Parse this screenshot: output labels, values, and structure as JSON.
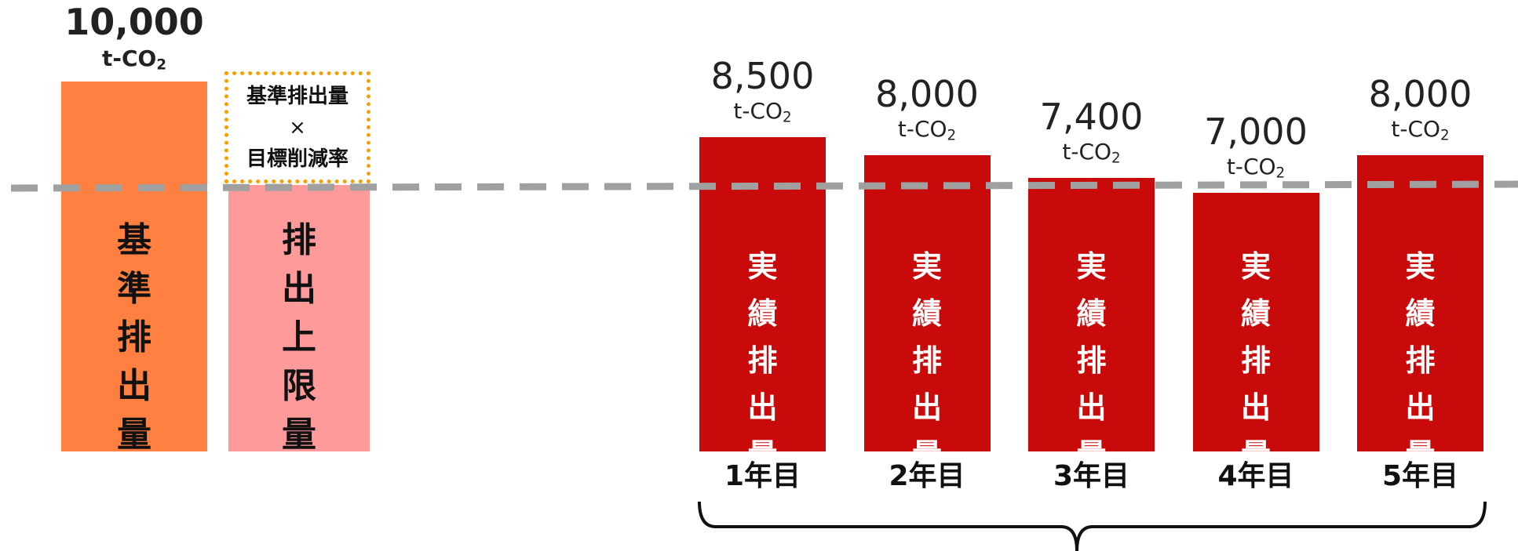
{
  "chart_data": {
    "type": "bar",
    "unit": "t-CO2",
    "unit_prefix": "t-CO",
    "unit_sub": "2",
    "baseline": {
      "value": "10,000",
      "numeric_value": 10000,
      "label": [
        "基",
        "準",
        "排",
        "出",
        "量"
      ],
      "color": "#FF8040"
    },
    "cap": {
      "label": [
        "排",
        "出",
        "上",
        "限",
        "量"
      ],
      "formula": [
        "基準排出量",
        "×",
        "目標削減率"
      ],
      "color": "#FF9A9A",
      "border_color": "#F5A000"
    },
    "categories": [
      "1年目",
      "2年目",
      "3年目",
      "4年目",
      "5年目"
    ],
    "series": [
      {
        "values": [
          8500,
          8000,
          7400,
          7000,
          8000
        ],
        "value_labels": [
          "8,500",
          "8,000",
          "7,400",
          "7,000",
          "8,000"
        ],
        "bar_text": [
          "実",
          "績",
          "排",
          "出",
          "量"
        ],
        "color": "#C80A0A"
      }
    ],
    "cap_line": {
      "style": "dashed",
      "color": "#A0A0A0"
    }
  }
}
